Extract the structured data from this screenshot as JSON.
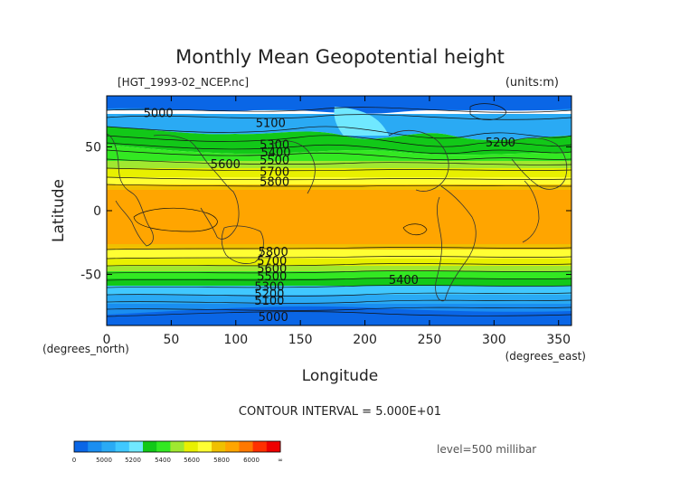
{
  "chart_data": {
    "type": "heatmap",
    "title": "Monthly Mean Geopotential height",
    "file_label": "[HGT_1993-02_NCEP.nc]",
    "units_label": "(units:m)",
    "xlabel": "Longitude",
    "ylabel": "Latitude",
    "x_unit_label": "(degrees_east)",
    "y_unit_label": "(degrees_north)",
    "xlim": [
      0,
      360
    ],
    "ylim": [
      -90,
      90
    ],
    "x_ticks": [
      0,
      50,
      100,
      150,
      200,
      250,
      300,
      350
    ],
    "y_ticks": [
      50,
      0,
      -50
    ],
    "contour_interval_text": "CONTOUR INTERVAL = 5.000E+01",
    "level_text": "level=500 millibar",
    "contour_labels": [
      {
        "text": "5000",
        "x": 40,
        "y": 77
      },
      {
        "text": "5100",
        "x": 127,
        "y": 69
      },
      {
        "text": "5200",
        "x": 305,
        "y": 54
      },
      {
        "text": "5300",
        "x": 130,
        "y": 52
      },
      {
        "text": "5400",
        "x": 131,
        "y": 46
      },
      {
        "text": "5500",
        "x": 130,
        "y": 40
      },
      {
        "text": "5600",
        "x": 92,
        "y": 37
      },
      {
        "text": "5700",
        "x": 130,
        "y": 31
      },
      {
        "text": "5800",
        "x": 130,
        "y": 23
      },
      {
        "text": "5800",
        "x": 129,
        "y": -32
      },
      {
        "text": "5700",
        "x": 128,
        "y": -39
      },
      {
        "text": "5600",
        "x": 128,
        "y": -45
      },
      {
        "text": "5500",
        "x": 128,
        "y": -51
      },
      {
        "text": "5400",
        "x": 230,
        "y": -54
      },
      {
        "text": "5300",
        "x": 126,
        "y": -59
      },
      {
        "text": "5200",
        "x": 126,
        "y": -65
      },
      {
        "text": "5100",
        "x": 126,
        "y": -70
      },
      {
        "text": "5000",
        "x": 129,
        "y": -83
      }
    ],
    "colorbar": {
      "labels": [
        "0",
        "5000",
        "5200",
        "5400",
        "5600",
        "5800",
        "6000",
        "∞"
      ],
      "colors": [
        "#0a66e6",
        "#1a8ef0",
        "#2aaaf4",
        "#40c8ff",
        "#70e8ff",
        "#12c818",
        "#33e822",
        "#a0e830",
        "#e8f000",
        "#ffff33",
        "#f0c000",
        "#ffa500",
        "#ff7800",
        "#ff3000",
        "#ee0000"
      ]
    }
  }
}
